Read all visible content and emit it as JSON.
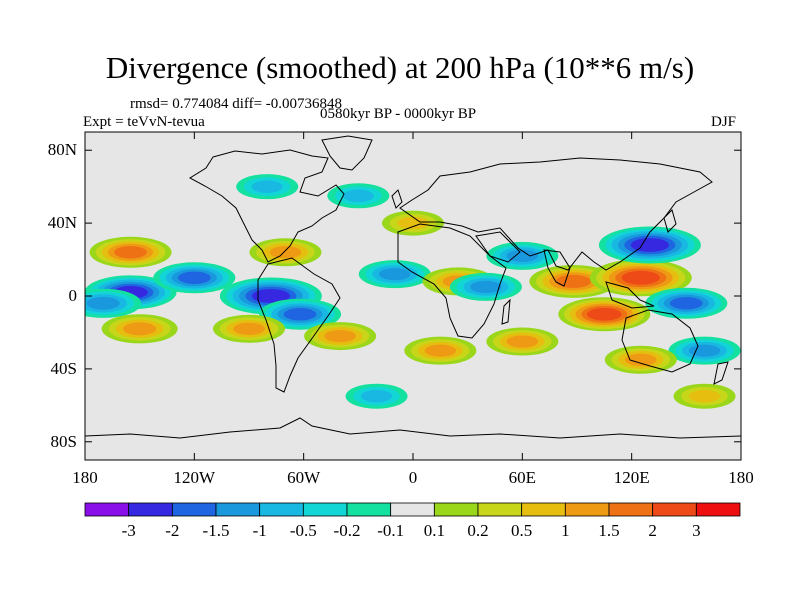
{
  "title": "Divergence (smoothed) at 200 hPa (10**6 m/s)",
  "stats_line": "rmsd= 0.774084 diff= -0.00736848",
  "period": "0580kyr BP - 0000kyr BP",
  "experiment": "Expt = teVvN-tevua",
  "season": "DJF",
  "map": {
    "projection": "cylindrical equidistant",
    "lon_range": [
      -180,
      180
    ],
    "lat_range": [
      -90,
      90
    ],
    "background_color": "#e6e6e6",
    "coastline_color": "#000000"
  },
  "axes": {
    "y_ticks": [
      {
        "lat": 80,
        "label": "80N"
      },
      {
        "lat": 40,
        "label": "40N"
      },
      {
        "lat": 0,
        "label": "0"
      },
      {
        "lat": -40,
        "label": "40S"
      },
      {
        "lat": -80,
        "label": "80S"
      }
    ],
    "x_ticks": [
      {
        "lon": -180,
        "label": "180"
      },
      {
        "lon": -120,
        "label": "120W"
      },
      {
        "lon": -60,
        "label": "60W"
      },
      {
        "lon": 0,
        "label": "0"
      },
      {
        "lon": 60,
        "label": "60E"
      },
      {
        "lon": 120,
        "label": "120E"
      },
      {
        "lon": 180,
        "label": "180"
      }
    ]
  },
  "colorbar": {
    "colors": [
      "#8a0ee8",
      "#3528e0",
      "#1f64e0",
      "#1a98de",
      "#18b8e3",
      "#12d6d6",
      "#14e0a0",
      "#e6e6e6",
      "#9ad61a",
      "#c8d61a",
      "#e6be10",
      "#ee9a14",
      "#ee7214",
      "#ee4a18",
      "#ee1010"
    ],
    "labels": [
      "-3",
      "-2",
      "-1.5",
      "-1",
      "-0.5",
      "-0.2",
      "-0.1",
      "0.1",
      "0.2",
      "0.5",
      "1",
      "1.5",
      "2",
      "3"
    ]
  },
  "chart_data": {
    "type": "heatmap",
    "title": "Divergence (smoothed) at 200 hPa (10**6 m/s)",
    "levels": [
      -3,
      -2,
      -1.5,
      -1,
      -0.5,
      -0.2,
      -0.1,
      0.1,
      0.2,
      0.5,
      1,
      1.5,
      2,
      3
    ],
    "features": [
      {
        "lon": -155,
        "lat": 24,
        "value": 1.5
      },
      {
        "lon": -155,
        "lat": 2,
        "value": -2
      },
      {
        "lon": -150,
        "lat": -18,
        "value": 1.2
      },
      {
        "lon": -170,
        "lat": -4,
        "value": -1.2
      },
      {
        "lon": -120,
        "lat": 10,
        "value": -1.5
      },
      {
        "lon": -78,
        "lat": 0,
        "value": -2.5
      },
      {
        "lon": -62,
        "lat": -10,
        "value": -1.5
      },
      {
        "lon": -90,
        "lat": -18,
        "value": 1
      },
      {
        "lon": -70,
        "lat": 24,
        "value": 1
      },
      {
        "lon": -40,
        "lat": -22,
        "value": 1
      },
      {
        "lon": -10,
        "lat": 12,
        "value": -1
      },
      {
        "lon": 25,
        "lat": 8,
        "value": 1
      },
      {
        "lon": 40,
        "lat": 5,
        "value": -1
      },
      {
        "lon": 60,
        "lat": 22,
        "value": -1
      },
      {
        "lon": 88,
        "lat": 8,
        "value": 1.8
      },
      {
        "lon": 125,
        "lat": 10,
        "value": 2.5
      },
      {
        "lon": 130,
        "lat": 28,
        "value": -2.5
      },
      {
        "lon": 105,
        "lat": -10,
        "value": 2
      },
      {
        "lon": 150,
        "lat": -4,
        "value": -1.5
      },
      {
        "lon": 160,
        "lat": -30,
        "value": -1
      },
      {
        "lon": 125,
        "lat": -35,
        "value": 1
      },
      {
        "lon": 15,
        "lat": -30,
        "value": 1
      },
      {
        "lon": 60,
        "lat": -25,
        "value": 1
      },
      {
        "lon": -30,
        "lat": 55,
        "value": -0.5
      },
      {
        "lon": -80,
        "lat": 60,
        "value": -0.5
      },
      {
        "lon": 0,
        "lat": 40,
        "value": 0.5
      },
      {
        "lon": -20,
        "lat": -55,
        "value": -0.5
      },
      {
        "lon": 160,
        "lat": -55,
        "value": 0.5
      }
    ]
  }
}
